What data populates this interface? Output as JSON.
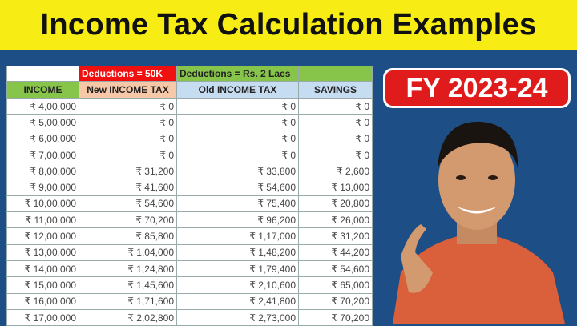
{
  "title": "Income Tax Calculation Examples",
  "badge": "FY 2023-24",
  "table": {
    "group_headers": [
      "",
      "Deductions = 50K",
      "Deductions = Rs. 2 Lacs",
      ""
    ],
    "columns": [
      "INCOME",
      "New INCOME TAX",
      "Old INCOME TAX",
      "SAVINGS"
    ],
    "rows": [
      [
        "₹ 4,00,000",
        "₹ 0",
        "₹ 0",
        "₹ 0"
      ],
      [
        "₹ 5,00,000",
        "₹ 0",
        "₹ 0",
        "₹ 0"
      ],
      [
        "₹ 6,00,000",
        "₹ 0",
        "₹ 0",
        "₹ 0"
      ],
      [
        "₹ 7,00,000",
        "₹ 0",
        "₹ 0",
        "₹ 0"
      ],
      [
        "₹ 8,00,000",
        "₹ 31,200",
        "₹ 33,800",
        "₹ 2,600"
      ],
      [
        "₹ 9,00,000",
        "₹ 41,600",
        "₹ 54,600",
        "₹ 13,000"
      ],
      [
        "₹ 10,00,000",
        "₹ 54,600",
        "₹ 75,400",
        "₹ 20,800"
      ],
      [
        "₹ 11,00,000",
        "₹ 70,200",
        "₹ 96,200",
        "₹ 26,000"
      ],
      [
        "₹ 12,00,000",
        "₹ 85,800",
        "₹ 1,17,000",
        "₹ 31,200"
      ],
      [
        "₹ 13,00,000",
        "₹ 1,04,000",
        "₹ 1,48,200",
        "₹ 44,200"
      ],
      [
        "₹ 14,00,000",
        "₹ 1,24,800",
        "₹ 1,79,400",
        "₹ 54,600"
      ],
      [
        "₹ 15,00,000",
        "₹ 1,45,600",
        "₹ 2,10,600",
        "₹ 65,000"
      ],
      [
        "₹ 16,00,000",
        "₹ 1,71,600",
        "₹ 2,41,800",
        "₹ 70,200"
      ],
      [
        "₹ 17,00,000",
        "₹ 2,02,800",
        "₹ 2,73,000",
        "₹ 70,200"
      ]
    ]
  },
  "colors": {
    "title_bg": "#f7ec14",
    "background": "#1d4f86",
    "badge": "#e01b1b"
  }
}
